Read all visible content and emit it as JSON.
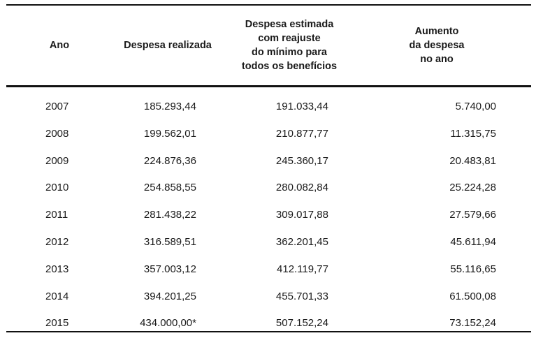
{
  "table": {
    "headers": {
      "ano": "Ano",
      "realizada": "Despesa realizada",
      "estimada": "Despesa estimada\ncom reajuste\ndo mínimo para\ntodos os benefícios",
      "aumento": "Aumento\nda despesa\nno ano"
    },
    "rows": [
      {
        "ano": "2007",
        "realizada": "185.293,44",
        "estimada": "191.033,44",
        "aumento": "5.740,00"
      },
      {
        "ano": "2008",
        "realizada": "199.562,01",
        "estimada": "210.877,77",
        "aumento": "11.315,75"
      },
      {
        "ano": "2009",
        "realizada": "224.876,36",
        "estimada": "245.360,17",
        "aumento": "20.483,81"
      },
      {
        "ano": "2010",
        "realizada": "254.858,55",
        "estimada": "280.082,84",
        "aumento": "25.224,28"
      },
      {
        "ano": "2011",
        "realizada": "281.438,22",
        "estimada": "309.017,88",
        "aumento": "27.579,66"
      },
      {
        "ano": "2012",
        "realizada": "316.589,51",
        "estimada": "362.201,45",
        "aumento": "45.611,94"
      },
      {
        "ano": "2013",
        "realizada": "357.003,12",
        "estimada": "412.119,77",
        "aumento": "55.116,65"
      },
      {
        "ano": "2014",
        "realizada": "394.201,25",
        "estimada": "455.701,33",
        "aumento": "61.500,08"
      },
      {
        "ano": "2015",
        "realizada": "434.000,00*",
        "estimada": "507.152,24",
        "aumento": "73.152,24"
      }
    ]
  }
}
